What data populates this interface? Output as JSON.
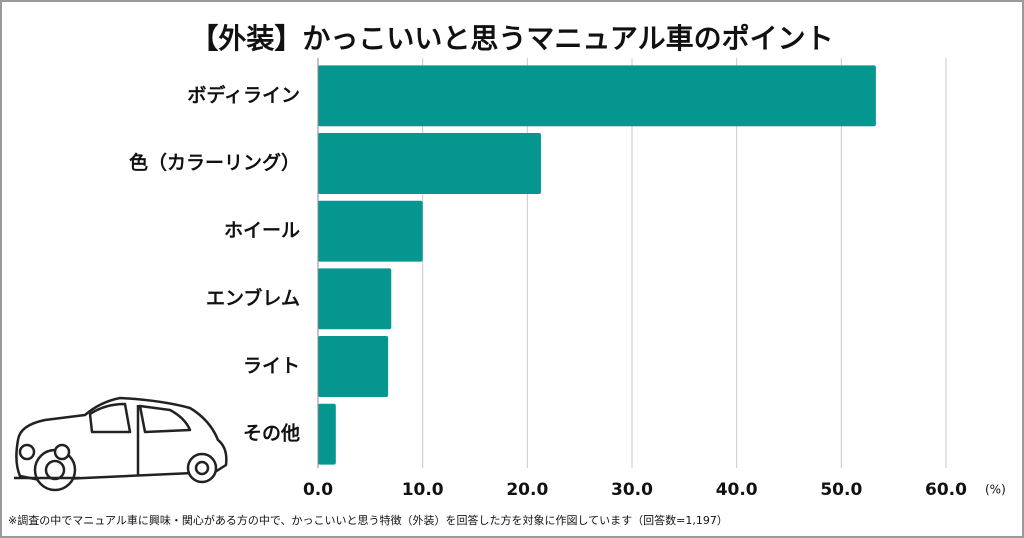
{
  "chart_data": {
    "type": "bar",
    "orientation": "horizontal",
    "title": "【外装】かっこいいと思うマニュアル車のポイント",
    "categories": [
      "ボディライン",
      "色（カラーリング）",
      "ホイール",
      "エンブレム",
      "ライト",
      "その他"
    ],
    "values": [
      53.3,
      21.3,
      10.0,
      7.0,
      6.7,
      1.7
    ],
    "color": "#069690",
    "xlim": [
      0,
      60
    ],
    "xticks": [
      {
        "value": 0,
        "label": "0.0"
      },
      {
        "value": 10,
        "label": "10.0"
      },
      {
        "value": 20,
        "label": "20.0"
      },
      {
        "value": 30,
        "label": "30.0"
      },
      {
        "value": 40,
        "label": "40.0"
      },
      {
        "value": 50,
        "label": "50.0"
      },
      {
        "value": 60,
        "label": "60.0"
      }
    ],
    "xlabel": "(%)",
    "grid": true,
    "note": "※調査の中でマニュアル車に興味・関心がある方の中で、かっこいいと思う特徴（外装）を回答した方を対象に作図しています（回答数=1,197）"
  }
}
